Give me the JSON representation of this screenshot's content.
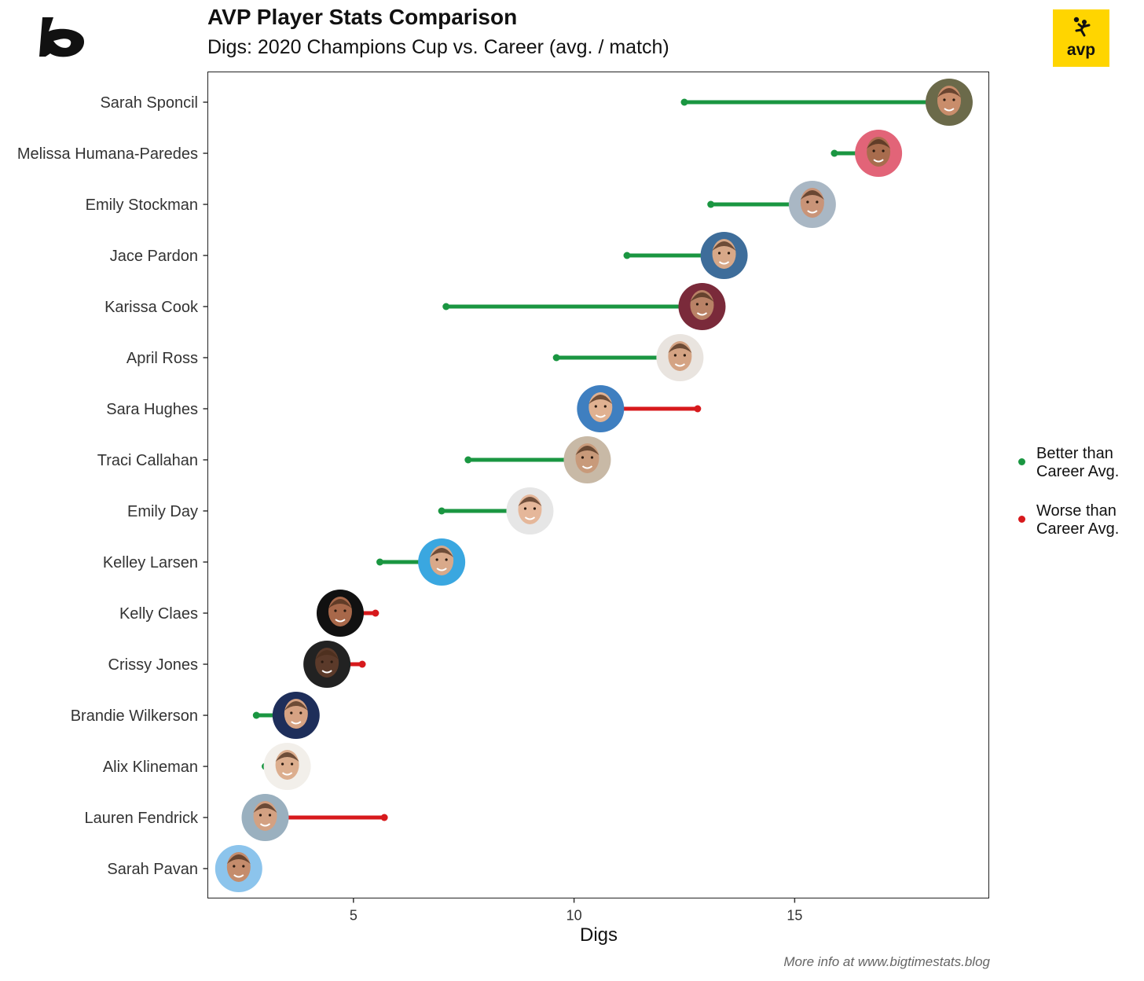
{
  "header": {
    "title": "AVP Player Stats Comparison",
    "subtitle": "Digs: 2020 Champions Cup vs. Career (avg. / match)"
  },
  "logos": {
    "left": "bigtimestats-logo",
    "right_text": "avp"
  },
  "legend": {
    "better_line1": "Better than",
    "better_line2": "Career Avg.",
    "worse_line1": "Worse than",
    "worse_line2": "Career Avg."
  },
  "caption": "More info at www.bigtimestats.blog",
  "colors": {
    "better": "#1a9641",
    "worse": "#d7191c",
    "logo_bg": "#ffd500"
  },
  "chart_data": {
    "type": "dumbbell",
    "xlabel": "Digs",
    "xlim": [
      1.7,
      19.4
    ],
    "xticks": [
      5,
      10,
      15
    ],
    "grid": false,
    "legend_position": "right",
    "players": [
      {
        "name": "Sarah Sponcil",
        "career": 12.5,
        "champions_cup": 18.5,
        "status": "better"
      },
      {
        "name": "Melissa Humana-Paredes",
        "career": 15.9,
        "champions_cup": 16.9,
        "status": "better"
      },
      {
        "name": "Emily Stockman",
        "career": 13.1,
        "champions_cup": 15.4,
        "status": "better"
      },
      {
        "name": "Jace Pardon",
        "career": 11.2,
        "champions_cup": 13.4,
        "status": "better"
      },
      {
        "name": "Karissa Cook",
        "career": 7.1,
        "champions_cup": 12.9,
        "status": "better"
      },
      {
        "name": "April Ross",
        "career": 9.6,
        "champions_cup": 12.4,
        "status": "better"
      },
      {
        "name": "Sara Hughes",
        "career": 12.8,
        "champions_cup": 10.6,
        "status": "worse"
      },
      {
        "name": "Traci Callahan",
        "career": 7.6,
        "champions_cup": 10.3,
        "status": "better"
      },
      {
        "name": "Emily Day",
        "career": 7.0,
        "champions_cup": 9.0,
        "status": "better"
      },
      {
        "name": "Kelley Larsen",
        "career": 5.6,
        "champions_cup": 7.0,
        "status": "better"
      },
      {
        "name": "Kelly Claes",
        "career": 5.5,
        "champions_cup": 4.7,
        "status": "worse"
      },
      {
        "name": "Crissy Jones",
        "career": 5.2,
        "champions_cup": 4.4,
        "status": "worse"
      },
      {
        "name": "Brandie Wilkerson",
        "career": 2.8,
        "champions_cup": 3.7,
        "status": "better"
      },
      {
        "name": "Alix Klineman",
        "career": 3.0,
        "champions_cup": 3.5,
        "status": "better"
      },
      {
        "name": "Lauren Fendrick",
        "career": 5.7,
        "champions_cup": 3.0,
        "status": "worse"
      },
      {
        "name": "Sarah Pavan",
        "career": 2.4,
        "champions_cup": 2.4,
        "status": "better"
      }
    ]
  }
}
